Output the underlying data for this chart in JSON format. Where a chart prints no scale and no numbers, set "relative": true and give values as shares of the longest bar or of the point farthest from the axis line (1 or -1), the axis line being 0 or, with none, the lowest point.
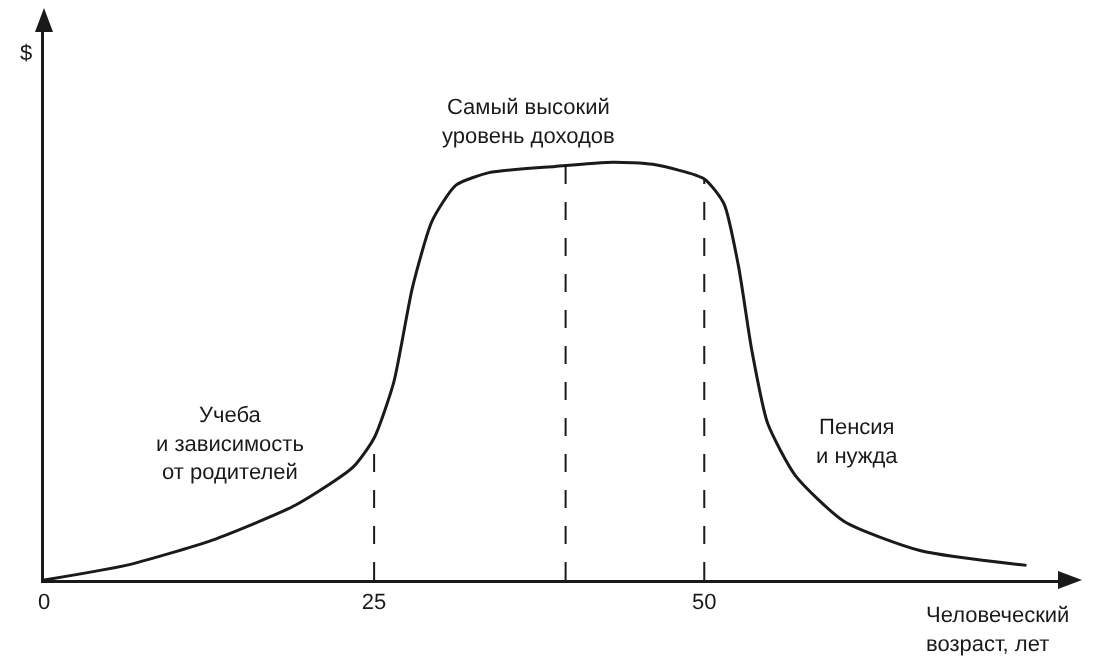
{
  "chart_data": {
    "type": "line",
    "relative": true,
    "xlabel": "Человеческий возраст, лет",
    "ylabel": "$",
    "x": [
      0,
      6.2,
      12.7,
      19.1,
      23.4,
      25,
      26.5,
      27.9,
      29.4,
      31.2,
      33.7,
      38.7,
      43.1,
      46.1,
      50,
      51.5,
      52.6,
      53.6,
      54.8,
      56.9,
      60.6,
      66.4,
      74.4
    ],
    "series": [
      {
        "color": "#1a1a1a",
        "values": [
          0,
          0.035,
          0.095,
          0.18,
          0.27,
          0.34,
          0.475,
          0.7,
          0.86,
          0.945,
          0.975,
          0.99,
          1,
          0.995,
          0.96,
          0.9,
          0.75,
          0.55,
          0.375,
          0.25,
          0.14,
          0.07,
          0.035
        ]
      }
    ],
    "xlim": [
      0,
      78
    ],
    "xticks": [
      0,
      25,
      50
    ],
    "marker": "none",
    "line_style": "solid",
    "ref_lines": [
      {
        "axis": "x",
        "value": 25,
        "line_style": "dashed",
        "color": "#1a1a1a"
      },
      {
        "axis": "x",
        "value": 39.5,
        "line_style": "dashed",
        "color": "#1a1a1a"
      },
      {
        "axis": "x",
        "value": 50,
        "line_style": "dashed",
        "color": "#1a1a1a"
      }
    ],
    "annotations": [
      "Учеба\nи зависимость\nот родителей",
      "Самый высокий\nуровень доходов",
      "Пенсия\nи нужда"
    ]
  }
}
